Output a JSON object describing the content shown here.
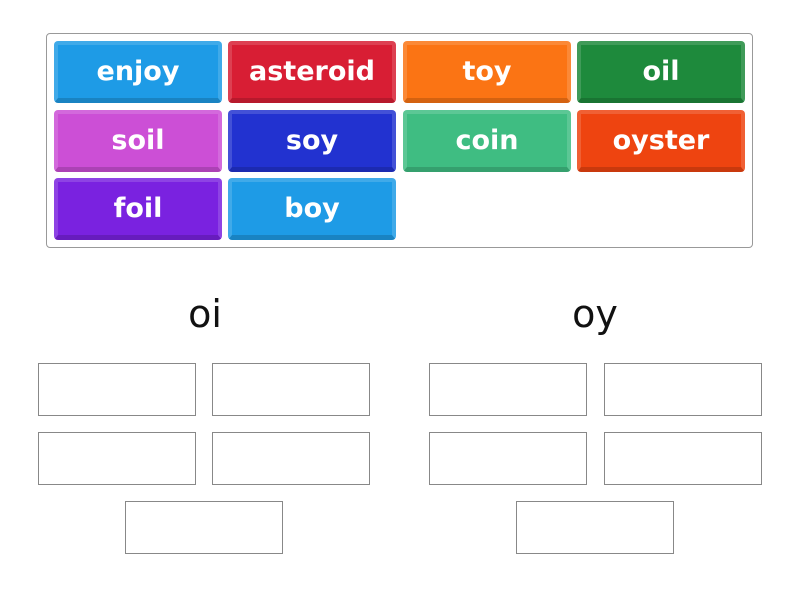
{
  "tiles": [
    {
      "label": "enjoy",
      "color": "#1e9be6"
    },
    {
      "label": "asteroid",
      "color": "#d81e34"
    },
    {
      "label": "toy",
      "color": "#fb7414"
    },
    {
      "label": "oil",
      "color": "#1e8a3c"
    },
    {
      "label": "soil",
      "color": "#cc4fd6"
    },
    {
      "label": "soy",
      "color": "#2232d0"
    },
    {
      "label": "coin",
      "color": "#3fbd82"
    },
    {
      "label": "oyster",
      "color": "#ee4410"
    },
    {
      "label": "foil",
      "color": "#7a22e0"
    },
    {
      "label": "boy",
      "color": "#1e9be6"
    }
  ],
  "groups": [
    {
      "title": "oi",
      "slots": 5
    },
    {
      "title": "oy",
      "slots": 5
    }
  ]
}
